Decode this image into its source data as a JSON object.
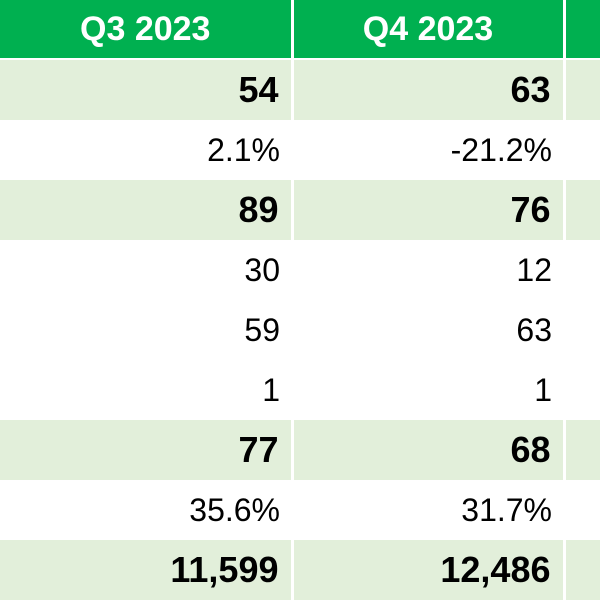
{
  "columns": [
    "Q3 2023",
    "Q4 2023"
  ],
  "rows": [
    {
      "style": "band-bold",
      "values": [
        "54",
        "63"
      ]
    },
    {
      "style": "plain",
      "values": [
        "2.1%",
        "-21.2%"
      ]
    },
    {
      "style": "band-bold",
      "values": [
        "89",
        "76"
      ]
    },
    {
      "style": "plain",
      "values": [
        "30",
        "12"
      ]
    },
    {
      "style": "plain",
      "values": [
        "59",
        "63"
      ]
    },
    {
      "style": "plain",
      "values": [
        "1",
        "1"
      ]
    },
    {
      "style": "band-bold",
      "values": [
        "77",
        "68"
      ]
    },
    {
      "style": "plain",
      "values": [
        "35.6%",
        "31.7%"
      ]
    },
    {
      "style": "band-bold",
      "values": [
        "11,599",
        "12,486"
      ]
    }
  ],
  "colors": {
    "header_fill": "#00b050",
    "header_text": "#ffffff",
    "band_fill": "#e2efda",
    "cell_text": "#000000"
  }
}
